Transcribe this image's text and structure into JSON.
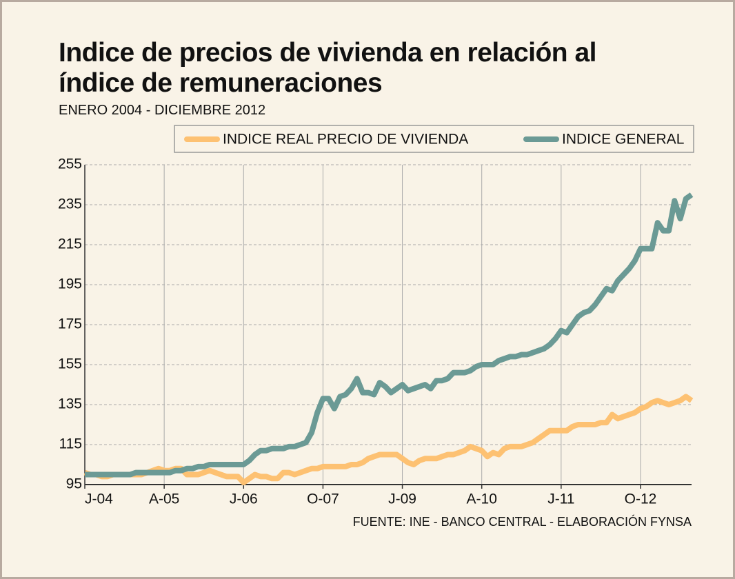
{
  "chart_data": {
    "type": "line",
    "title": "Indice de precios de vivienda en relación al índice de remuneraciones",
    "subtitle": "ENERO 2004 - DICIEMBRE 2012",
    "source": "FUENTE: INE - BANCO CENTRAL - ELABORACIÓN FYNSA",
    "categories": [
      "J-04",
      null,
      null,
      null,
      null,
      null,
      null,
      null,
      null,
      null,
      null,
      null,
      null,
      null,
      "A-05",
      null,
      null,
      null,
      null,
      null,
      null,
      null,
      null,
      null,
      null,
      null,
      null,
      null,
      "J-06",
      null,
      null,
      null,
      null,
      null,
      null,
      null,
      null,
      null,
      null,
      null,
      null,
      null,
      "O-07",
      null,
      null,
      null,
      null,
      null,
      null,
      null,
      null,
      null,
      null,
      null,
      null,
      null,
      "J-09",
      null,
      null,
      null,
      null,
      null,
      null,
      null,
      null,
      null,
      null,
      null,
      null,
      null,
      "A-10",
      null,
      null,
      null,
      null,
      null,
      null,
      null,
      null,
      null,
      null,
      null,
      null,
      null,
      "J-11",
      null,
      null,
      null,
      null,
      null,
      null,
      null,
      null,
      null,
      null,
      null,
      null,
      null,
      "O-12",
      null,
      null,
      null,
      null,
      null,
      null,
      null,
      null,
      null
    ],
    "series": [
      {
        "name": "INDICE REAL PRECIO DE VIVIENDA",
        "color": "#fdc172",
        "values": [
          101,
          100,
          100,
          99,
          99,
          100,
          100,
          100,
          100,
          100,
          100,
          101,
          102,
          103,
          102,
          102,
          103,
          103,
          100,
          100,
          100,
          101,
          102,
          101,
          100,
          99,
          99,
          99,
          96,
          98,
          100,
          99,
          99,
          98,
          98,
          101,
          101,
          100,
          101,
          102,
          103,
          103,
          104,
          104,
          104,
          104,
          104,
          105,
          105,
          106,
          108,
          109,
          110,
          110,
          110,
          110,
          108,
          106,
          105,
          107,
          108,
          108,
          108,
          109,
          110,
          110,
          111,
          112,
          114,
          113,
          112,
          109,
          111,
          110,
          113,
          114,
          114,
          114,
          115,
          116,
          118,
          120,
          122,
          122,
          122,
          122,
          124,
          125,
          125,
          125,
          125,
          126,
          126,
          130,
          128,
          129,
          130,
          131,
          133,
          134,
          136,
          137,
          136,
          135,
          136,
          137,
          139,
          137
        ]
      },
      {
        "name": "INDICE GENERAL",
        "color": "#6b9a95",
        "values": [
          100,
          100,
          100,
          100,
          100,
          100,
          100,
          100,
          100,
          101,
          101,
          101,
          101,
          101,
          101,
          101,
          102,
          102,
          103,
          103,
          104,
          104,
          105,
          105,
          105,
          105,
          105,
          105,
          105,
          107,
          110,
          112,
          112,
          113,
          113,
          113,
          114,
          114,
          115,
          116,
          121,
          131,
          138,
          138,
          133,
          139,
          140,
          143,
          148,
          141,
          141,
          140,
          146,
          144,
          141,
          143,
          145,
          142,
          143,
          144,
          145,
          143,
          147,
          147,
          148,
          151,
          151,
          151,
          152,
          154,
          155,
          155,
          155,
          157,
          158,
          159,
          159,
          160,
          160,
          161,
          162,
          163,
          165,
          168,
          172,
          171,
          175,
          179,
          181,
          182,
          185,
          189,
          193,
          192,
          197,
          200,
          203,
          207,
          213,
          213,
          213,
          226,
          222,
          222,
          237,
          228,
          238,
          240
        ]
      }
    ],
    "ylim": [
      95,
      255
    ],
    "yticks": [
      95,
      115,
      135,
      155,
      175,
      195,
      215,
      235,
      255
    ],
    "grid": true
  }
}
